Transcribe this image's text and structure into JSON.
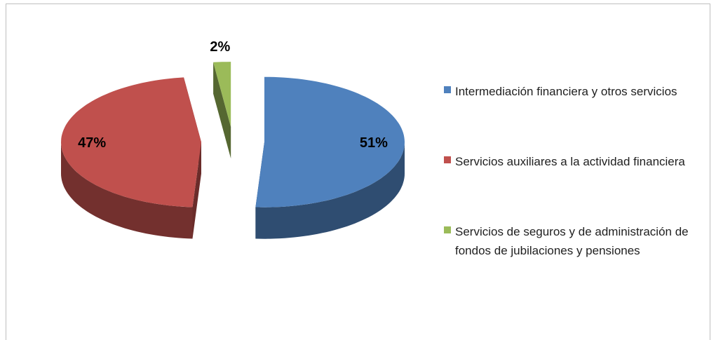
{
  "chart_data": {
    "type": "pie",
    "categories": [
      "Intermediación financiera y otros servicios",
      "Servicios auxiliares a la actividad financiera",
      "Servicios de seguros y de administración de fondos de jubilaciones y pensiones"
    ],
    "values": [
      51,
      47,
      2
    ],
    "value_labels": [
      "51%",
      "47%",
      "2%"
    ],
    "colors": [
      "#4f81bd",
      "#c0504d",
      "#9bbb59"
    ],
    "legend": "right"
  }
}
